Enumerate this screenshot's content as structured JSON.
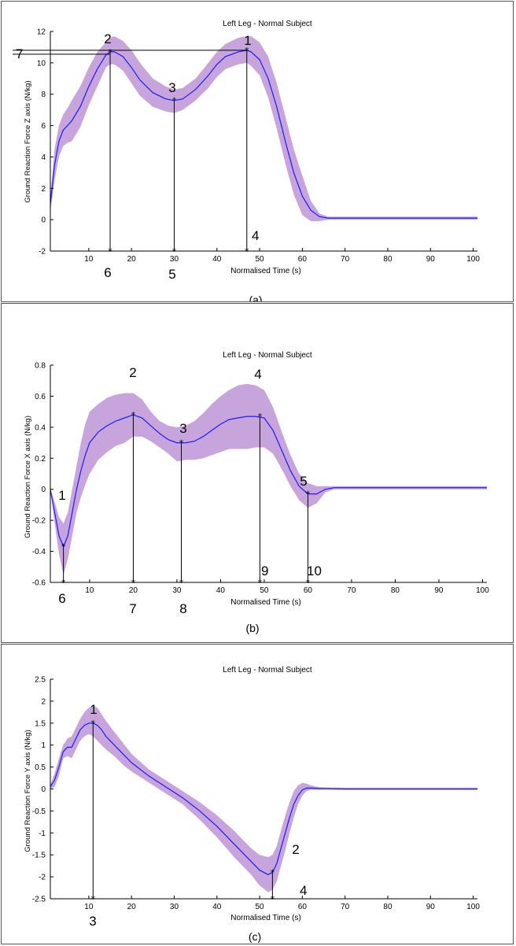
{
  "chart_data": [
    {
      "type": "line",
      "panel_label": "(a)",
      "title": "Left Leg - Normal Subject",
      "xlabel": "Normalised Time (s)",
      "ylabel": "Ground Reaction Force Z axis (N/kg)",
      "xlim": [
        1,
        101
      ],
      "ylim": [
        -2,
        12
      ],
      "xticks": [
        10,
        20,
        30,
        40,
        50,
        60,
        70,
        80,
        90,
        100
      ],
      "yticks": [
        -2,
        0,
        2,
        4,
        6,
        8,
        10,
        12
      ],
      "colors": {
        "line": "#1a1aff",
        "band": "#c7a5dc"
      },
      "series": [
        {
          "x": [
            1,
            2,
            3,
            4,
            5,
            6,
            8,
            10,
            12,
            14,
            15,
            16,
            18,
            20,
            22,
            25,
            28,
            30,
            32,
            35,
            38,
            40,
            42,
            45,
            47,
            48,
            50,
            52,
            54,
            56,
            58,
            60,
            62,
            64,
            66,
            68,
            70,
            80,
            90,
            101
          ],
          "mean": [
            1.0,
            3.5,
            5.0,
            5.7,
            6.0,
            6.3,
            7.2,
            8.5,
            9.6,
            10.5,
            10.7,
            10.7,
            10.4,
            9.7,
            8.9,
            8.1,
            7.7,
            7.6,
            7.7,
            8.3,
            9.2,
            9.9,
            10.4,
            10.7,
            10.8,
            10.7,
            10.2,
            9.0,
            7.2,
            5.0,
            3.0,
            1.5,
            0.6,
            0.2,
            0.1,
            0.1,
            0.1,
            0.1,
            0.1,
            0.1
          ],
          "upper": [
            1.5,
            4.5,
            6.0,
            6.7,
            7.1,
            7.6,
            8.5,
            9.7,
            10.7,
            11.3,
            11.6,
            11.7,
            11.4,
            10.8,
            10.0,
            9.0,
            8.5,
            8.3,
            8.4,
            9.0,
            10.0,
            10.7,
            11.2,
            11.6,
            11.7,
            11.7,
            11.3,
            10.4,
            8.7,
            6.6,
            4.5,
            2.8,
            1.2,
            0.4,
            0.2,
            0.2,
            0.2,
            0.2,
            0.2,
            0.2
          ],
          "lower": [
            0.5,
            2.5,
            4.0,
            4.7,
            4.9,
            5.0,
            5.9,
            7.3,
            8.5,
            9.7,
            9.9,
            9.9,
            9.5,
            8.7,
            7.9,
            7.2,
            6.9,
            6.8,
            7.0,
            7.6,
            8.4,
            9.1,
            9.6,
            9.9,
            10.0,
            9.8,
            9.2,
            7.8,
            5.8,
            3.6,
            1.6,
            0.3,
            -0.1,
            -0.1,
            0.0,
            0.0,
            0.0,
            0.0,
            0.0,
            0.0
          ]
        }
      ],
      "markers": [
        {
          "label": "1",
          "x": 47,
          "y": 10.8
        },
        {
          "label": "2",
          "x": 15,
          "y": 10.7
        },
        {
          "label": "3",
          "x": 30,
          "y": 7.6
        },
        {
          "label": "4",
          "x": 47,
          "y": -2
        },
        {
          "label": "5",
          "x": 30,
          "y": -2
        },
        {
          "label": "6",
          "x": 15,
          "y": -2
        },
        {
          "label": "7",
          "x": 1,
          "y": 10.7
        }
      ]
    },
    {
      "type": "line",
      "panel_label": "(b)",
      "title": "Left Leg - Normal Subject",
      "xlabel": "Normalised Time (s)",
      "ylabel": "Ground Reaction Force X axis (N/kg)",
      "xlim": [
        1,
        101
      ],
      "ylim": [
        -0.6,
        0.8
      ],
      "xticks": [
        10,
        20,
        30,
        40,
        50,
        60,
        70,
        80,
        90,
        100
      ],
      "yticks": [
        -0.6,
        -0.4,
        -0.2,
        0,
        0.2,
        0.4,
        0.6,
        0.8
      ],
      "ytick_labels": [
        "-0.6",
        "-0.4",
        "-0.2",
        "0",
        "0.2",
        "0.4",
        "0.6",
        "0.8"
      ],
      "colors": {
        "line": "#1a1aff",
        "band": "#c7a5dc"
      },
      "series": [
        {
          "x": [
            1,
            2,
            3,
            4,
            5,
            6,
            7,
            8,
            9,
            10,
            12,
            14,
            16,
            18,
            20,
            22,
            24,
            26,
            28,
            30,
            32,
            34,
            36,
            38,
            40,
            42,
            44,
            46,
            48,
            50,
            52,
            54,
            56,
            58,
            60,
            62,
            64,
            66,
            70,
            80,
            90,
            101
          ],
          "mean": [
            0.0,
            -0.15,
            -0.3,
            -0.37,
            -0.3,
            -0.15,
            0.0,
            0.12,
            0.22,
            0.3,
            0.37,
            0.41,
            0.44,
            0.46,
            0.48,
            0.46,
            0.41,
            0.36,
            0.32,
            0.3,
            0.3,
            0.31,
            0.34,
            0.38,
            0.42,
            0.45,
            0.46,
            0.47,
            0.47,
            0.46,
            0.38,
            0.25,
            0.12,
            0.02,
            -0.03,
            -0.03,
            0.0,
            0.01,
            0.01,
            0.01,
            0.01,
            0.01
          ],
          "upper": [
            0.0,
            -0.08,
            -0.18,
            -0.22,
            -0.15,
            0.0,
            0.15,
            0.3,
            0.42,
            0.5,
            0.55,
            0.59,
            0.61,
            0.62,
            0.62,
            0.58,
            0.5,
            0.44,
            0.41,
            0.4,
            0.41,
            0.44,
            0.49,
            0.55,
            0.6,
            0.64,
            0.67,
            0.68,
            0.67,
            0.64,
            0.53,
            0.37,
            0.22,
            0.1,
            0.04,
            0.02,
            0.02,
            0.02,
            0.02,
            0.02,
            0.02,
            0.02
          ],
          "lower": [
            0.0,
            -0.22,
            -0.42,
            -0.55,
            -0.45,
            -0.3,
            -0.15,
            -0.05,
            0.03,
            0.1,
            0.19,
            0.24,
            0.28,
            0.3,
            0.34,
            0.34,
            0.31,
            0.27,
            0.23,
            0.18,
            0.19,
            0.19,
            0.2,
            0.22,
            0.24,
            0.26,
            0.26,
            0.26,
            0.27,
            0.27,
            0.23,
            0.13,
            0.02,
            -0.07,
            -0.12,
            -0.09,
            -0.02,
            0.0,
            0.0,
            0.0,
            0.0,
            0.0
          ]
        }
      ],
      "markers": [
        {
          "label": "1",
          "x": 4,
          "y": -0.37
        },
        {
          "label": "2",
          "x": 20,
          "y": 0.48
        },
        {
          "label": "3",
          "x": 31,
          "y": 0.3
        },
        {
          "label": "4",
          "x": 49,
          "y": 0.47
        },
        {
          "label": "5",
          "x": 60,
          "y": -0.03
        },
        {
          "label": "6",
          "x": 4,
          "y": -0.6
        },
        {
          "label": "7",
          "x": 20,
          "y": -0.6
        },
        {
          "label": "8",
          "x": 31,
          "y": -0.6
        },
        {
          "label": "9",
          "x": 49,
          "y": -0.6
        },
        {
          "label": "10",
          "x": 60,
          "y": -0.6
        }
      ]
    },
    {
      "type": "line",
      "panel_label": "(c)",
      "title": "Left Leg - Normal Subject",
      "xlabel": "Normalised Time (s)",
      "ylabel": "Ground Reaction Force Y axis (N/kg)",
      "xlim": [
        1,
        101
      ],
      "ylim": [
        -2.5,
        2.5
      ],
      "xticks": [
        10,
        20,
        30,
        40,
        50,
        60,
        70,
        80,
        90,
        100
      ],
      "yticks": [
        -2.5,
        -2,
        -1.5,
        -1,
        -0.5,
        0,
        0.5,
        1,
        1.5,
        2,
        2.5
      ],
      "ytick_labels": [
        "-2.5",
        "-2",
        "-1.5",
        "-1",
        "-0.5",
        "0",
        "0.5",
        "1",
        "1.5",
        "2",
        "2.5"
      ],
      "colors": {
        "line": "#1a1aff",
        "band": "#c7a5dc"
      },
      "series": [
        {
          "x": [
            1,
            2,
            3,
            4,
            5,
            6,
            7,
            8,
            9,
            10,
            11,
            12,
            13,
            14,
            16,
            18,
            20,
            24,
            28,
            32,
            36,
            40,
            44,
            48,
            50,
            52,
            53,
            54,
            55,
            56,
            57,
            58,
            59,
            60,
            61,
            62,
            64,
            66,
            70,
            80,
            90,
            101
          ],
          "mean": [
            0.05,
            0.2,
            0.5,
            0.85,
            0.95,
            0.95,
            1.15,
            1.35,
            1.45,
            1.5,
            1.5,
            1.45,
            1.35,
            1.2,
            1.0,
            0.8,
            0.6,
            0.3,
            0.05,
            -0.2,
            -0.5,
            -0.85,
            -1.25,
            -1.65,
            -1.85,
            -1.95,
            -1.9,
            -1.7,
            -1.35,
            -1.0,
            -0.65,
            -0.35,
            -0.15,
            -0.02,
            0.02,
            0.02,
            0.01,
            0.01,
            0.0,
            0.0,
            0.0,
            0.0
          ],
          "upper": [
            0.1,
            0.35,
            0.7,
            1.0,
            1.15,
            1.2,
            1.4,
            1.6,
            1.75,
            1.85,
            1.9,
            1.85,
            1.7,
            1.55,
            1.3,
            1.05,
            0.8,
            0.45,
            0.2,
            -0.05,
            -0.3,
            -0.6,
            -0.95,
            -1.35,
            -1.5,
            -1.55,
            -1.5,
            -1.3,
            -0.95,
            -0.6,
            -0.3,
            -0.05,
            0.08,
            0.14,
            0.12,
            0.08,
            0.04,
            0.03,
            0.03,
            0.03,
            0.03,
            0.03
          ],
          "lower": [
            0.0,
            0.05,
            0.3,
            0.7,
            0.75,
            0.7,
            0.9,
            1.1,
            1.2,
            1.25,
            1.2,
            1.1,
            1.0,
            0.9,
            0.75,
            0.55,
            0.4,
            0.15,
            -0.1,
            -0.35,
            -0.7,
            -1.1,
            -1.55,
            -1.95,
            -2.2,
            -2.35,
            -2.3,
            -2.1,
            -1.75,
            -1.4,
            -1.0,
            -0.65,
            -0.35,
            -0.15,
            -0.05,
            -0.02,
            -0.02,
            -0.02,
            -0.02,
            -0.02,
            -0.02,
            -0.02
          ]
        }
      ],
      "markers": [
        {
          "label": "1",
          "x": 11,
          "y": 1.5
        },
        {
          "label": "2",
          "x": 53,
          "y": -1.9
        },
        {
          "label": "3",
          "x": 11,
          "y": -2.5
        },
        {
          "label": "4",
          "x": 53,
          "y": -2.5
        }
      ]
    }
  ]
}
